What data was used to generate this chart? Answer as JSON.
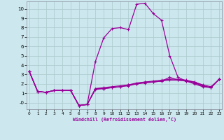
{
  "xlabel": "Windchill (Refroidissement éolien,°C)",
  "background_color": "#cce8ee",
  "grid_color": "#aac8cc",
  "line_color": "#990099",
  "x_values": [
    0,
    1,
    2,
    3,
    4,
    5,
    6,
    7,
    8,
    9,
    10,
    11,
    12,
    13,
    14,
    15,
    16,
    17,
    18,
    19,
    20,
    21,
    22,
    23
  ],
  "series": [
    [
      3.3,
      1.2,
      1.1,
      1.3,
      1.3,
      1.3,
      -0.3,
      -0.2,
      4.4,
      6.9,
      7.9,
      8.0,
      7.8,
      10.5,
      10.6,
      9.5,
      8.8,
      5.0,
      2.7,
      2.3,
      2.0,
      1.7,
      1.6,
      2.5
    ],
    [
      3.3,
      1.2,
      1.1,
      1.3,
      1.3,
      1.3,
      -0.3,
      -0.2,
      1.5,
      1.5,
      1.6,
      1.7,
      1.9,
      2.0,
      2.2,
      2.2,
      2.3,
      2.7,
      2.4,
      2.3,
      2.2,
      1.8,
      1.6,
      2.5
    ],
    [
      3.3,
      1.2,
      1.1,
      1.3,
      1.3,
      1.3,
      -0.3,
      -0.2,
      1.5,
      1.6,
      1.7,
      1.8,
      1.9,
      2.1,
      2.2,
      2.3,
      2.4,
      2.5,
      2.5,
      2.4,
      2.2,
      1.9,
      1.7,
      2.5
    ],
    [
      3.3,
      1.2,
      1.1,
      1.3,
      1.3,
      1.3,
      -0.3,
      -0.2,
      1.4,
      1.5,
      1.6,
      1.7,
      1.8,
      2.0,
      2.1,
      2.2,
      2.3,
      2.4,
      2.4,
      2.3,
      2.1,
      1.8,
      1.6,
      2.5
    ]
  ],
  "ylim": [
    -0.7,
    10.8
  ],
  "xlim": [
    -0.3,
    23.3
  ],
  "yticks": [
    0,
    1,
    2,
    3,
    4,
    5,
    6,
    7,
    8,
    9,
    10
  ],
  "ytick_labels": [
    "-0",
    "1",
    "2",
    "3",
    "4",
    "5",
    "6",
    "7",
    "8",
    "9",
    "10"
  ],
  "xticks": [
    0,
    1,
    2,
    3,
    4,
    5,
    6,
    7,
    8,
    9,
    10,
    11,
    12,
    13,
    14,
    15,
    16,
    17,
    18,
    19,
    20,
    21,
    22,
    23
  ]
}
